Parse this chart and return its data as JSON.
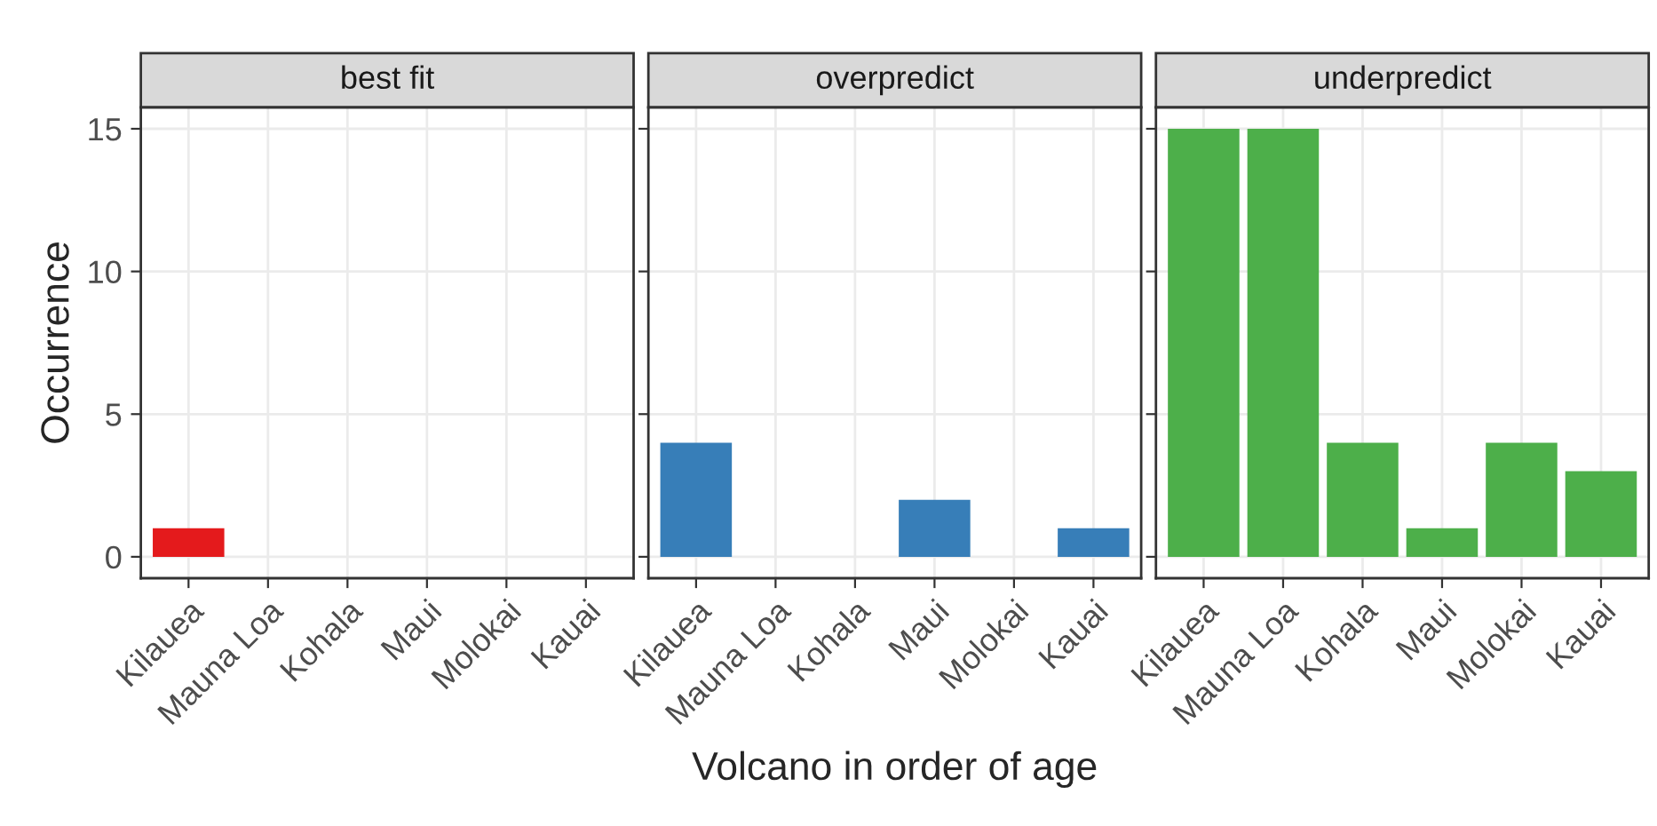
{
  "chart_data": [
    {
      "type": "bar",
      "title": "best fit",
      "ylabel": "Occurrence",
      "categories": [
        "Kilauea",
        "Mauna Loa",
        "Kohala",
        "Maui",
        "Molokai",
        "Kauai"
      ],
      "values": [
        1,
        0,
        0,
        0,
        0,
        0
      ],
      "color": "#e41a1c",
      "ylim": [
        -0.75,
        15.75
      ],
      "yticks": [
        0,
        5,
        10,
        15
      ],
      "grid": true
    },
    {
      "type": "bar",
      "title": "overpredict",
      "xlabel": "Volcano in order of age",
      "categories": [
        "Kilauea",
        "Mauna Loa",
        "Kohala",
        "Maui",
        "Molokai",
        "Kauai"
      ],
      "values": [
        4,
        0,
        0,
        2,
        0,
        1
      ],
      "color": "#377eb8",
      "ylim": [
        -0.75,
        15.75
      ],
      "yticks": [
        0,
        5,
        10,
        15
      ],
      "grid": true,
      "tick_labels": "x"
    },
    {
      "type": "bar",
      "title": "underpredict",
      "categories": [
        "Kilauea",
        "Mauna Loa",
        "Kohala",
        "Maui",
        "Molokai",
        "Kauai"
      ],
      "values": [
        15,
        15,
        4,
        1,
        4,
        3
      ],
      "color": "#4daf4a",
      "ylim": [
        -0.75,
        15.75
      ],
      "yticks": [
        0,
        5,
        10,
        15
      ],
      "grid": true,
      "tick_labels": "x"
    }
  ]
}
